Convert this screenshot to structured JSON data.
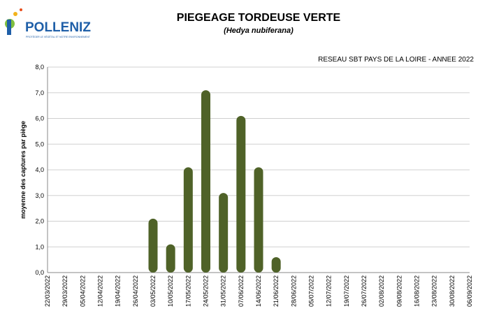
{
  "logo": {
    "name": "POLLENIZ",
    "tagline": "PROTÉGER LE VÉGÉTAL ET NOTRE ENVIRONNEMENT"
  },
  "chart_data": {
    "type": "bar",
    "title": "PIEGEAGE TORDEUSE VERTE",
    "subtitle": "(Hedya nubiferana)",
    "annotation": "RESEAU SBT PAYS DE LA LOIRE - ANNEE 2022",
    "y_label": "moyenne des captures par piège",
    "categories": [
      "22/03/2022",
      "29/03/2022",
      "05/04/2022",
      "12/04/2022",
      "19/04/2022",
      "26/04/2022",
      "03/05/2022",
      "10/05/2022",
      "17/05/2022",
      "24/05/2022",
      "31/05/2022",
      "07/06/2022",
      "14/06/2022",
      "21/06/2022",
      "28/06/2022",
      "05/07/2022",
      "12/07/2022",
      "19/07/2022",
      "26/07/2022",
      "02/08/2022",
      "09/08/2022",
      "16/08/2022",
      "23/08/2022",
      "30/08/2022",
      "06/09/2022"
    ],
    "values": [
      0,
      0,
      0,
      0,
      0,
      0,
      2.1,
      1.1,
      4.1,
      7.1,
      3.1,
      6.1,
      4.1,
      0.6,
      0,
      0,
      0,
      0,
      0,
      0,
      0,
      0,
      0,
      0,
      0
    ],
    "color": "#4f6228",
    "ylim": [
      0,
      8
    ],
    "yticks": [
      {
        "value": 0,
        "label": "0,0"
      },
      {
        "value": 1,
        "label": "1,0"
      },
      {
        "value": 2,
        "label": "2,0"
      },
      {
        "value": 3,
        "label": "3,0"
      },
      {
        "value": 4,
        "label": "4,0"
      },
      {
        "value": 5,
        "label": "5,0"
      },
      {
        "value": 6,
        "label": "6,0"
      },
      {
        "value": 7,
        "label": "7,0"
      },
      {
        "value": 8,
        "label": "8,0"
      }
    ],
    "grid": true
  }
}
